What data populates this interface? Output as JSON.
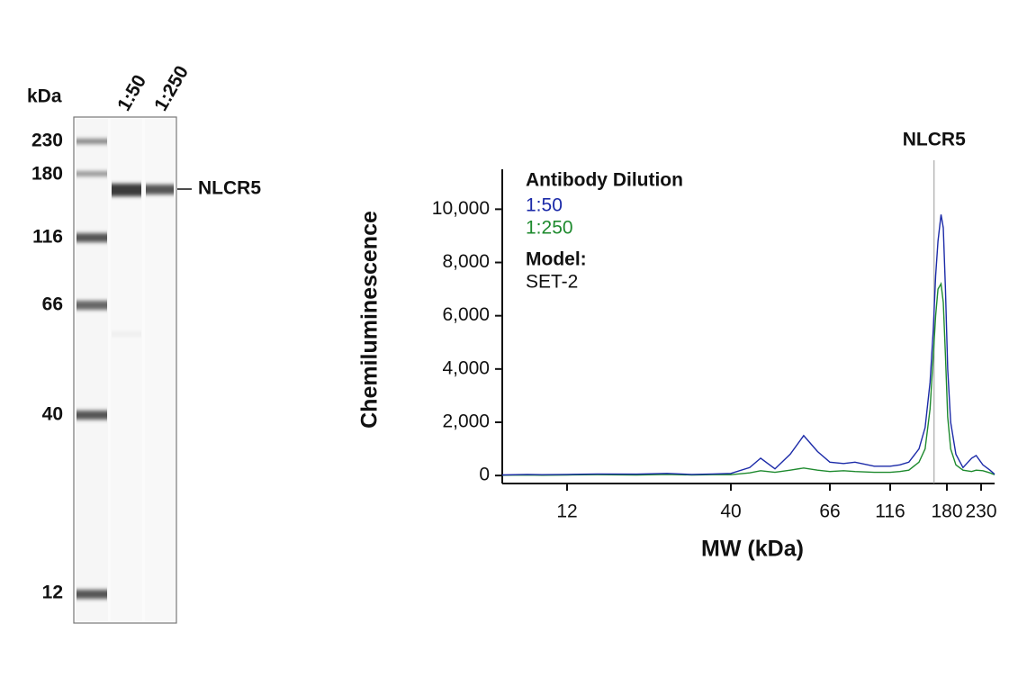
{
  "gel": {
    "unit_label": "kDa",
    "lanes": [
      "1:50",
      "1:250"
    ],
    "markers": [
      "230",
      "180",
      "116",
      "66",
      "40",
      "12"
    ],
    "band_label": "NLCR5"
  },
  "chart_data": {
    "type": "line",
    "xlabel": "MW (kDa)",
    "ylabel": "Chemiluminescence",
    "legend_title": "Antibody Dilution",
    "notes": [
      "Model:",
      "SET-2"
    ],
    "annotation": {
      "text": "NLCR5",
      "x": 163
    },
    "x": [
      7.5,
      9,
      10,
      12,
      15,
      20,
      25,
      30,
      35,
      40,
      44,
      46.5,
      50,
      54,
      57.8,
      62,
      66,
      75,
      83.5,
      100,
      116,
      125,
      134,
      145,
      152,
      158,
      162,
      165,
      168,
      172,
      175,
      178,
      181,
      185,
      192,
      202,
      215,
      222,
      233,
      245,
      253
    ],
    "series": [
      {
        "name": "1:50",
        "color": "#1b2aa8",
        "values": [
          20,
          40,
          30,
          40,
          60,
          50,
          80,
          40,
          60,
          80,
          300,
          650,
          250,
          800,
          1500,
          900,
          500,
          450,
          500,
          350,
          350,
          400,
          500,
          1000,
          1800,
          3500,
          5500,
          7500,
          8800,
          9800,
          9300,
          7000,
          4000,
          2000,
          800,
          300,
          650,
          750,
          400,
          200,
          50
        ]
      },
      {
        "name": "1:250",
        "color": "#1e8a2e",
        "values": [
          10,
          20,
          10,
          20,
          30,
          20,
          40,
          20,
          30,
          30,
          100,
          180,
          120,
          200,
          280,
          200,
          150,
          180,
          150,
          120,
          120,
          150,
          200,
          500,
          1000,
          2500,
          4500,
          6000,
          7000,
          7200,
          6500,
          4500,
          2200,
          1000,
          400,
          200,
          150,
          200,
          180,
          100,
          30
        ]
      }
    ],
    "xlim": [
      7.5,
      253
    ],
    "xticks": [
      12,
      40,
      66,
      116,
      180,
      230
    ],
    "ylim": [
      -300,
      11500
    ],
    "yticks": [
      0,
      {
        "value": 2000,
        "label": "2,000"
      },
      {
        "value": 4000,
        "label": "4,000"
      },
      {
        "value": 6000,
        "label": "6,000"
      },
      {
        "value": 8000,
        "label": "8,000"
      },
      {
        "value": 10000,
        "label": "10,000"
      }
    ]
  }
}
